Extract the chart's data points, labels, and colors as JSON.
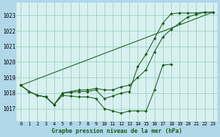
{
  "title": "Graphe pression niveau de la mer (hPa)",
  "background_color": "#b0d8e8",
  "plot_bg_color": "#d8f0f0",
  "grid_color": "#90c8b8",
  "line_color": "#1a5c1a",
  "x_labels": [
    "0",
    "1",
    "2",
    "3",
    "4",
    "5",
    "6",
    "7",
    "8",
    "9",
    "10",
    "11",
    "12",
    "13",
    "14",
    "15",
    "16",
    "17",
    "18",
    "19",
    "20",
    "21",
    "22",
    "23"
  ],
  "ylim": [
    1016.2,
    1023.8
  ],
  "yticks": [
    1017,
    1018,
    1019,
    1020,
    1021,
    1022,
    1023
  ],
  "series": [
    {
      "x": [
        0,
        1,
        2,
        3,
        4,
        5,
        6,
        7,
        8,
        9,
        10,
        11,
        12,
        13,
        14,
        15,
        16,
        17,
        18
      ],
      "y": [
        1018.5,
        1018.1,
        1017.85,
        1017.75,
        1017.25,
        1017.85,
        1017.8,
        1017.75,
        1017.75,
        1017.65,
        1017.0,
        1016.85,
        1016.7,
        1016.85,
        1016.85,
        1016.85,
        1018.2,
        1019.8,
        1019.85
      ],
      "marker": true
    },
    {
      "x": [
        0,
        1,
        2,
        3,
        4,
        5,
        6,
        7,
        8,
        9,
        10,
        11,
        12,
        13,
        14,
        15,
        16,
        17,
        18,
        19,
        20,
        21,
        22,
        23
      ],
      "y": [
        1018.5,
        1018.1,
        1017.85,
        1017.75,
        1017.25,
        1018.0,
        1018.05,
        1018.1,
        1018.1,
        1018.2,
        1017.65,
        1017.8,
        1018.0,
        1018.1,
        1019.7,
        1020.5,
        1021.5,
        1022.5,
        1023.1,
        1023.15,
        1023.15,
        1023.15,
        1023.2,
        1023.2
      ],
      "marker": true
    },
    {
      "x": [
        0,
        1,
        2,
        3,
        4,
        5,
        6,
        7,
        8,
        9,
        10,
        11,
        12,
        13,
        14,
        15,
        16,
        17,
        18,
        19,
        20,
        21,
        22,
        23
      ],
      "y": [
        1018.5,
        1018.1,
        1017.85,
        1017.75,
        1017.25,
        1018.0,
        1018.1,
        1018.2,
        1018.2,
        1018.3,
        1018.2,
        1018.2,
        1018.4,
        1018.5,
        1019.0,
        1019.5,
        1020.65,
        1021.6,
        1022.1,
        1022.5,
        1022.9,
        1023.05,
        1023.2,
        1023.2
      ],
      "marker": true
    },
    {
      "x": [
        0,
        23
      ],
      "y": [
        1018.5,
        1023.2
      ],
      "marker": false
    }
  ]
}
